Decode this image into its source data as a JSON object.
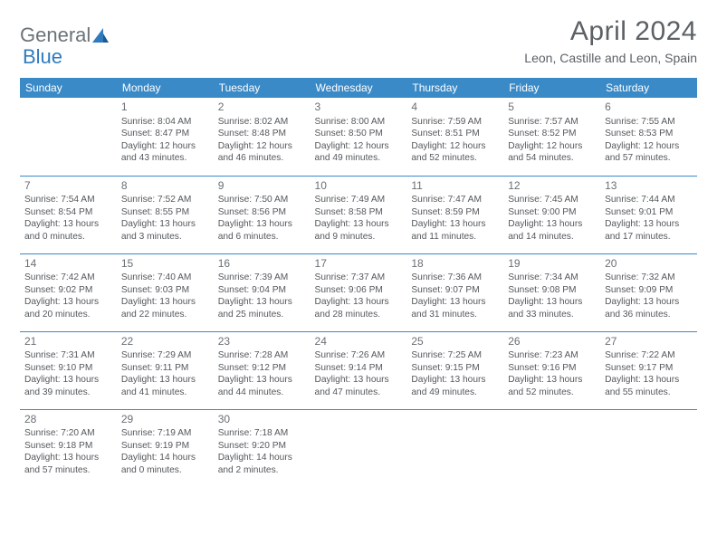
{
  "logo": {
    "part1": "General",
    "part2": "Blue"
  },
  "title": "April 2024",
  "subtitle": "Leon, Castille and Leon, Spain",
  "headers": [
    "Sunday",
    "Monday",
    "Tuesday",
    "Wednesday",
    "Thursday",
    "Friday",
    "Saturday"
  ],
  "header_bg": "#3a8ac8",
  "header_fg": "#ffffff",
  "text_color": "#54585c",
  "cell_border": "#3a8ac8",
  "font_sizes": {
    "title": 30,
    "subtitle": 14,
    "header": 12,
    "daynum": 12,
    "cell": 10.2
  },
  "weeks": [
    [
      null,
      {
        "n": "1",
        "sr": "8:04 AM",
        "ss": "8:47 PM",
        "dl": "12 hours and 43 minutes."
      },
      {
        "n": "2",
        "sr": "8:02 AM",
        "ss": "8:48 PM",
        "dl": "12 hours and 46 minutes."
      },
      {
        "n": "3",
        "sr": "8:00 AM",
        "ss": "8:50 PM",
        "dl": "12 hours and 49 minutes."
      },
      {
        "n": "4",
        "sr": "7:59 AM",
        "ss": "8:51 PM",
        "dl": "12 hours and 52 minutes."
      },
      {
        "n": "5",
        "sr": "7:57 AM",
        "ss": "8:52 PM",
        "dl": "12 hours and 54 minutes."
      },
      {
        "n": "6",
        "sr": "7:55 AM",
        "ss": "8:53 PM",
        "dl": "12 hours and 57 minutes."
      }
    ],
    [
      {
        "n": "7",
        "sr": "7:54 AM",
        "ss": "8:54 PM",
        "dl": "13 hours and 0 minutes."
      },
      {
        "n": "8",
        "sr": "7:52 AM",
        "ss": "8:55 PM",
        "dl": "13 hours and 3 minutes."
      },
      {
        "n": "9",
        "sr": "7:50 AM",
        "ss": "8:56 PM",
        "dl": "13 hours and 6 minutes."
      },
      {
        "n": "10",
        "sr": "7:49 AM",
        "ss": "8:58 PM",
        "dl": "13 hours and 9 minutes."
      },
      {
        "n": "11",
        "sr": "7:47 AM",
        "ss": "8:59 PM",
        "dl": "13 hours and 11 minutes."
      },
      {
        "n": "12",
        "sr": "7:45 AM",
        "ss": "9:00 PM",
        "dl": "13 hours and 14 minutes."
      },
      {
        "n": "13",
        "sr": "7:44 AM",
        "ss": "9:01 PM",
        "dl": "13 hours and 17 minutes."
      }
    ],
    [
      {
        "n": "14",
        "sr": "7:42 AM",
        "ss": "9:02 PM",
        "dl": "13 hours and 20 minutes."
      },
      {
        "n": "15",
        "sr": "7:40 AM",
        "ss": "9:03 PM",
        "dl": "13 hours and 22 minutes."
      },
      {
        "n": "16",
        "sr": "7:39 AM",
        "ss": "9:04 PM",
        "dl": "13 hours and 25 minutes."
      },
      {
        "n": "17",
        "sr": "7:37 AM",
        "ss": "9:06 PM",
        "dl": "13 hours and 28 minutes."
      },
      {
        "n": "18",
        "sr": "7:36 AM",
        "ss": "9:07 PM",
        "dl": "13 hours and 31 minutes."
      },
      {
        "n": "19",
        "sr": "7:34 AM",
        "ss": "9:08 PM",
        "dl": "13 hours and 33 minutes."
      },
      {
        "n": "20",
        "sr": "7:32 AM",
        "ss": "9:09 PM",
        "dl": "13 hours and 36 minutes."
      }
    ],
    [
      {
        "n": "21",
        "sr": "7:31 AM",
        "ss": "9:10 PM",
        "dl": "13 hours and 39 minutes."
      },
      {
        "n": "22",
        "sr": "7:29 AM",
        "ss": "9:11 PM",
        "dl": "13 hours and 41 minutes."
      },
      {
        "n": "23",
        "sr": "7:28 AM",
        "ss": "9:12 PM",
        "dl": "13 hours and 44 minutes."
      },
      {
        "n": "24",
        "sr": "7:26 AM",
        "ss": "9:14 PM",
        "dl": "13 hours and 47 minutes."
      },
      {
        "n": "25",
        "sr": "7:25 AM",
        "ss": "9:15 PM",
        "dl": "13 hours and 49 minutes."
      },
      {
        "n": "26",
        "sr": "7:23 AM",
        "ss": "9:16 PM",
        "dl": "13 hours and 52 minutes."
      },
      {
        "n": "27",
        "sr": "7:22 AM",
        "ss": "9:17 PM",
        "dl": "13 hours and 55 minutes."
      }
    ],
    [
      {
        "n": "28",
        "sr": "7:20 AM",
        "ss": "9:18 PM",
        "dl": "13 hours and 57 minutes."
      },
      {
        "n": "29",
        "sr": "7:19 AM",
        "ss": "9:19 PM",
        "dl": "14 hours and 0 minutes."
      },
      {
        "n": "30",
        "sr": "7:18 AM",
        "ss": "9:20 PM",
        "dl": "14 hours and 2 minutes."
      },
      null,
      null,
      null,
      null
    ]
  ],
  "labels": {
    "sunrise": "Sunrise:",
    "sunset": "Sunset:",
    "daylight": "Daylight:"
  }
}
